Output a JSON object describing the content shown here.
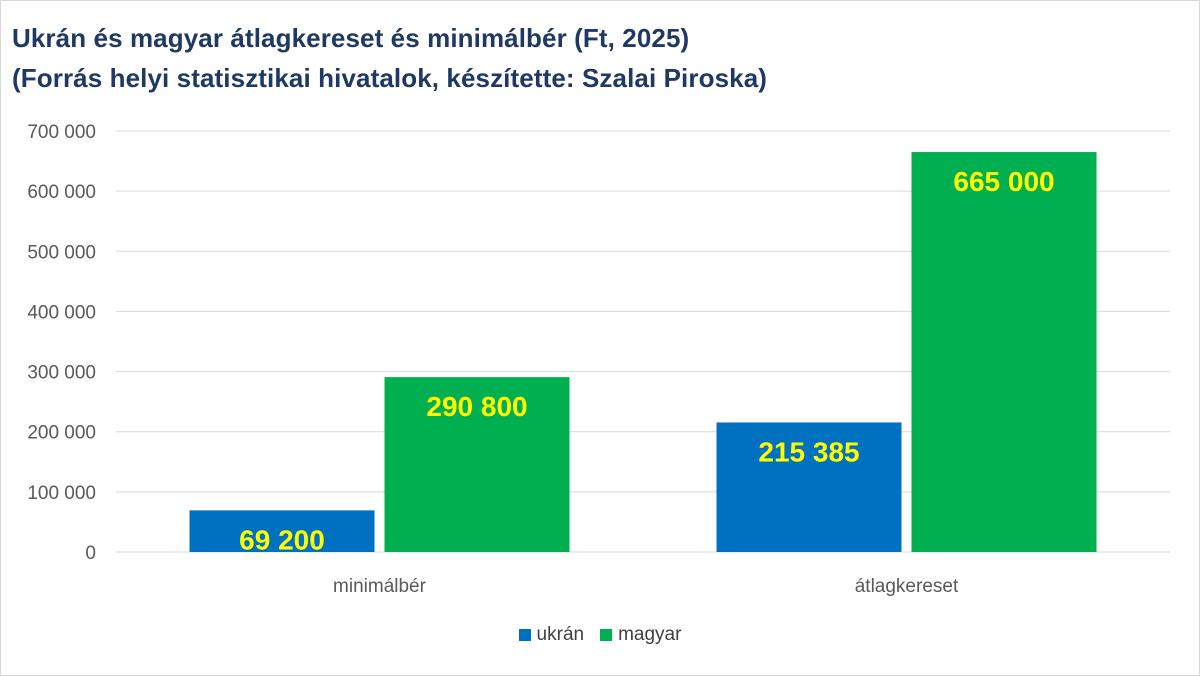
{
  "chart_data": {
    "type": "bar",
    "title_lines": [
      "Ukrán és magyar átlagkereset és minimálbér (Ft, 2025)",
      "(Forrás helyi statisztikai hivatalok, készítette: Szalai Piroska)"
    ],
    "categories": [
      "minimálbér",
      "átlagkereset"
    ],
    "series": [
      {
        "name": "ukrán",
        "color": "#0070c0",
        "values": [
          69200,
          215385
        ],
        "labels": [
          "69 200",
          "215 385"
        ]
      },
      {
        "name": "magyar",
        "color": "#00b050",
        "values": [
          290800,
          665000
        ],
        "labels": [
          "290 800",
          "665 000"
        ]
      }
    ],
    "ylim": [
      0,
      700000
    ],
    "yticks": [
      0,
      100000,
      200000,
      300000,
      400000,
      500000,
      600000,
      700000
    ],
    "ytick_labels": [
      "0",
      "100 000",
      "200 000",
      "300 000",
      "400 000",
      "500 000",
      "600 000",
      "700 000"
    ],
    "grid": true,
    "legend_position": "bottom",
    "data_label_color": "#ffff00",
    "title_color": "#1f3864"
  }
}
